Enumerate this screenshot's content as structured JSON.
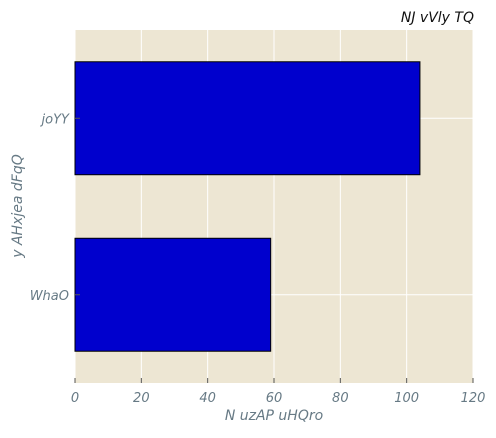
{
  "chart_data": {
    "type": "bar",
    "orientation": "horizontal",
    "title": "NJ vVly TQ",
    "xlabel": "N uzAP uHQro",
    "ylabel": "y AHxjea dFqQ",
    "categories": [
      "WhaO",
      "joYY"
    ],
    "values": [
      59,
      104
    ],
    "xlim": [
      0,
      120
    ],
    "xticks": [
      0,
      20,
      40,
      60,
      80,
      100,
      120
    ],
    "grid": true,
    "legend": "none",
    "colors": {
      "bar": "#0000cd",
      "bar_edge": "#000000",
      "plot_background": "#ede6d3",
      "grid": "#ffffff",
      "tick_text": "#677a85",
      "title_text": "#111111"
    }
  }
}
